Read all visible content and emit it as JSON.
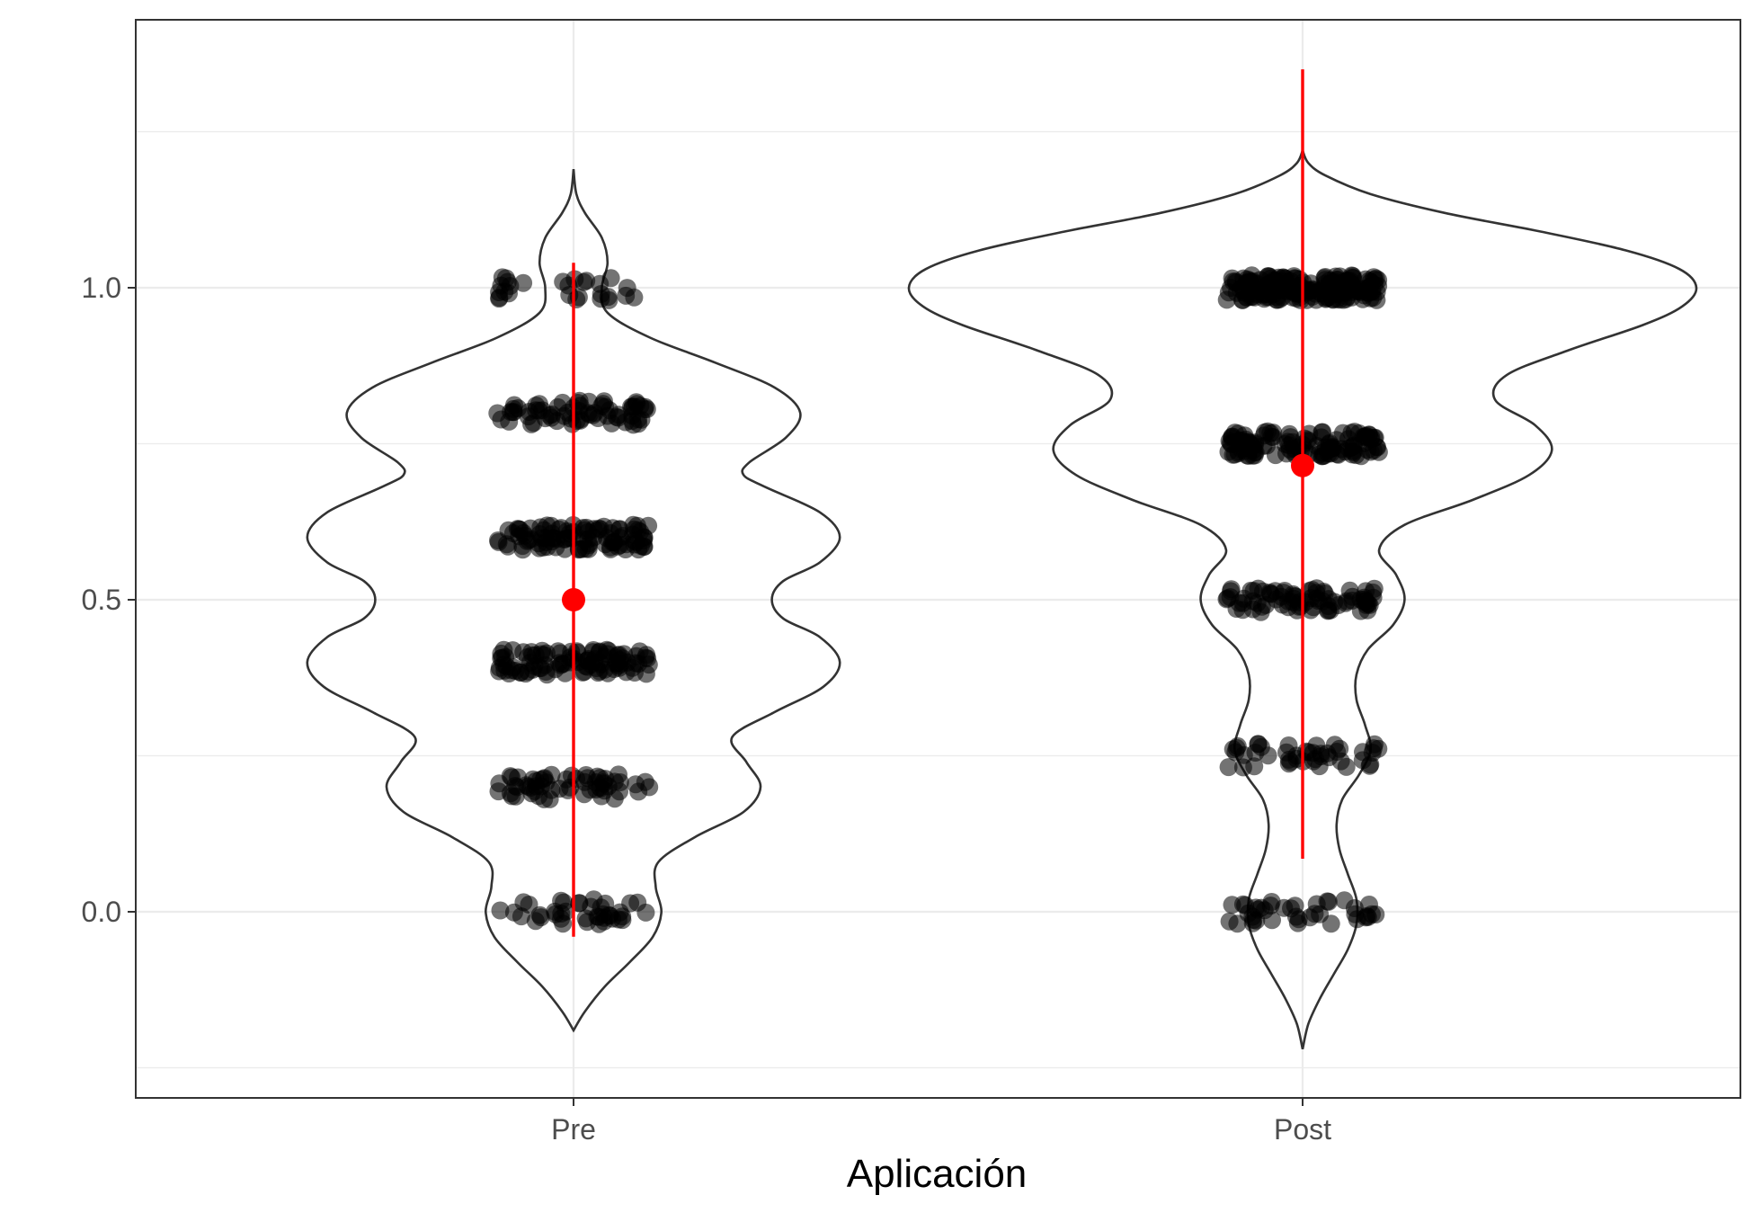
{
  "chart_data": {
    "type": "violin",
    "xlabel": "Aplicación",
    "ylabel": "",
    "categories": [
      "Pre",
      "Post"
    ],
    "ylim": [
      -0.25,
      1.48
    ],
    "y_ticks": [
      0.0,
      0.5,
      1.0
    ],
    "y_tick_labels": [
      "0.0",
      "0.5",
      "1.0"
    ],
    "grid": true,
    "colors": {
      "violin_outline": "#333333",
      "points": "#000000",
      "summary": "#ff0000",
      "grid": "#ebebeb",
      "panel_border": "#333333"
    },
    "groups": [
      {
        "name": "Pre",
        "violin_range": [
          -0.19,
          1.19
        ],
        "density": [
          [
            -0.19,
            0.0
          ],
          [
            -0.16,
            0.04
          ],
          [
            -0.12,
            0.11
          ],
          [
            -0.08,
            0.2
          ],
          [
            -0.04,
            0.28
          ],
          [
            0.0,
            0.31
          ],
          [
            0.04,
            0.29
          ],
          [
            0.08,
            0.3
          ],
          [
            0.12,
            0.43
          ],
          [
            0.16,
            0.6
          ],
          [
            0.2,
            0.66
          ],
          [
            0.24,
            0.61
          ],
          [
            0.28,
            0.56
          ],
          [
            0.32,
            0.71
          ],
          [
            0.36,
            0.88
          ],
          [
            0.4,
            0.94
          ],
          [
            0.44,
            0.87
          ],
          [
            0.47,
            0.74
          ],
          [
            0.5,
            0.7
          ],
          [
            0.53,
            0.74
          ],
          [
            0.56,
            0.87
          ],
          [
            0.6,
            0.94
          ],
          [
            0.64,
            0.87
          ],
          [
            0.68,
            0.68
          ],
          [
            0.7,
            0.6
          ],
          [
            0.72,
            0.62
          ],
          [
            0.76,
            0.75
          ],
          [
            0.8,
            0.8
          ],
          [
            0.84,
            0.71
          ],
          [
            0.88,
            0.5
          ],
          [
            0.92,
            0.27
          ],
          [
            0.96,
            0.12
          ],
          [
            1.0,
            0.1
          ],
          [
            1.04,
            0.12
          ],
          [
            1.08,
            0.1
          ],
          [
            1.12,
            0.04
          ],
          [
            1.15,
            0.01
          ],
          [
            1.19,
            0.0
          ]
        ],
        "point_levels": [
          0.0,
          0.2,
          0.4,
          0.6,
          0.8,
          1.0
        ],
        "point_counts": [
          40,
          60,
          100,
          100,
          70,
          28
        ],
        "mean": 0.5,
        "interval": [
          -0.04,
          1.04
        ]
      },
      {
        "name": "Post",
        "violin_range": [
          -0.22,
          1.22
        ],
        "density": [
          [
            -0.22,
            0.0
          ],
          [
            -0.18,
            0.02
          ],
          [
            -0.14,
            0.06
          ],
          [
            -0.1,
            0.11
          ],
          [
            -0.06,
            0.16
          ],
          [
            -0.02,
            0.19
          ],
          [
            0.02,
            0.19
          ],
          [
            0.06,
            0.16
          ],
          [
            0.1,
            0.13
          ],
          [
            0.14,
            0.12
          ],
          [
            0.18,
            0.14
          ],
          [
            0.22,
            0.2
          ],
          [
            0.26,
            0.24
          ],
          [
            0.3,
            0.22
          ],
          [
            0.34,
            0.19
          ],
          [
            0.38,
            0.19
          ],
          [
            0.42,
            0.23
          ],
          [
            0.46,
            0.32
          ],
          [
            0.5,
            0.36
          ],
          [
            0.54,
            0.33
          ],
          [
            0.58,
            0.27
          ],
          [
            0.62,
            0.36
          ],
          [
            0.66,
            0.6
          ],
          [
            0.7,
            0.8
          ],
          [
            0.74,
            0.88
          ],
          [
            0.78,
            0.82
          ],
          [
            0.82,
            0.68
          ],
          [
            0.86,
            0.72
          ],
          [
            0.9,
            0.94
          ],
          [
            0.94,
            1.2
          ],
          [
            0.97,
            1.34
          ],
          [
            1.0,
            1.39
          ],
          [
            1.03,
            1.33
          ],
          [
            1.06,
            1.14
          ],
          [
            1.09,
            0.84
          ],
          [
            1.12,
            0.5
          ],
          [
            1.15,
            0.24
          ],
          [
            1.18,
            0.08
          ],
          [
            1.2,
            0.02
          ],
          [
            1.22,
            0.0
          ]
        ],
        "point_levels": [
          0.0,
          0.25,
          0.5,
          0.75,
          1.0
        ],
        "point_counts": [
          40,
          45,
          80,
          120,
          180
        ],
        "mean": 0.715,
        "interval": [
          0.085,
          1.35
        ]
      }
    ]
  }
}
